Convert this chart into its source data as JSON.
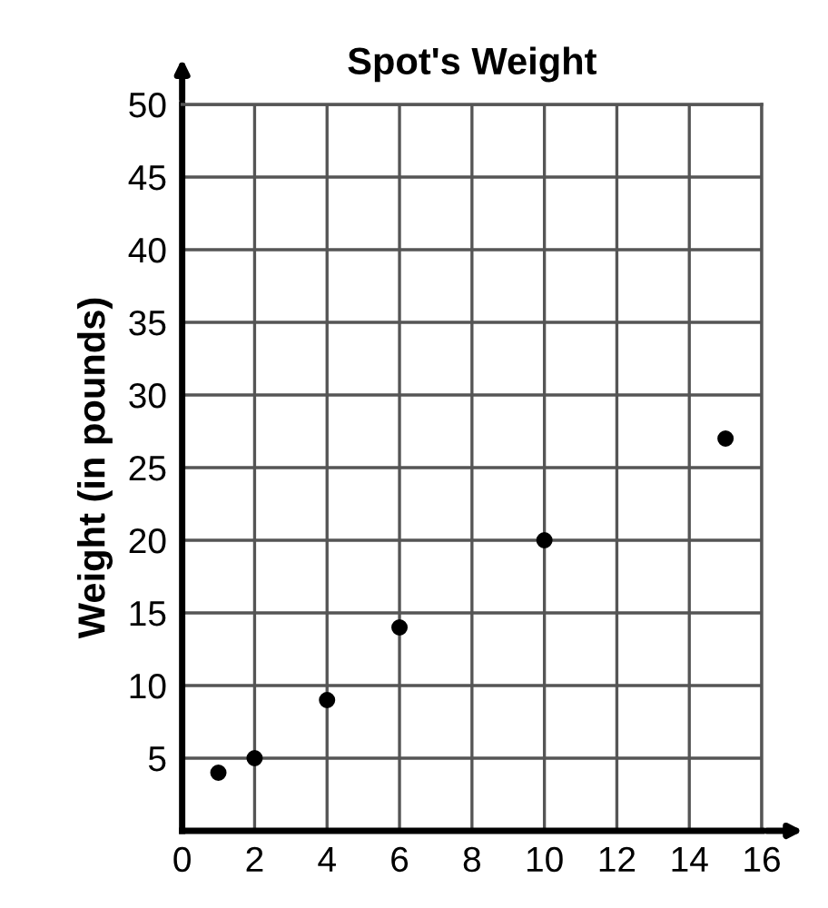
{
  "chart_data": {
    "type": "scatter",
    "title": "Spot's Weight",
    "ylabel": "Weight (in pounds)",
    "x": [
      1,
      2,
      4,
      6,
      10,
      15
    ],
    "series": [
      {
        "color": "#000000",
        "values": [
          4,
          5,
          9,
          14,
          20,
          27
        ]
      }
    ],
    "xlim": [
      0,
      16
    ],
    "ylim": [
      0,
      50
    ],
    "xticks": [
      0,
      2,
      4,
      6,
      8,
      10,
      12,
      14,
      16
    ],
    "yticks": [
      {
        "value": 0,
        "label": null
      },
      5,
      10,
      15,
      20,
      25,
      30,
      35,
      40,
      45,
      50
    ],
    "grid": true,
    "marker": "circle"
  }
}
